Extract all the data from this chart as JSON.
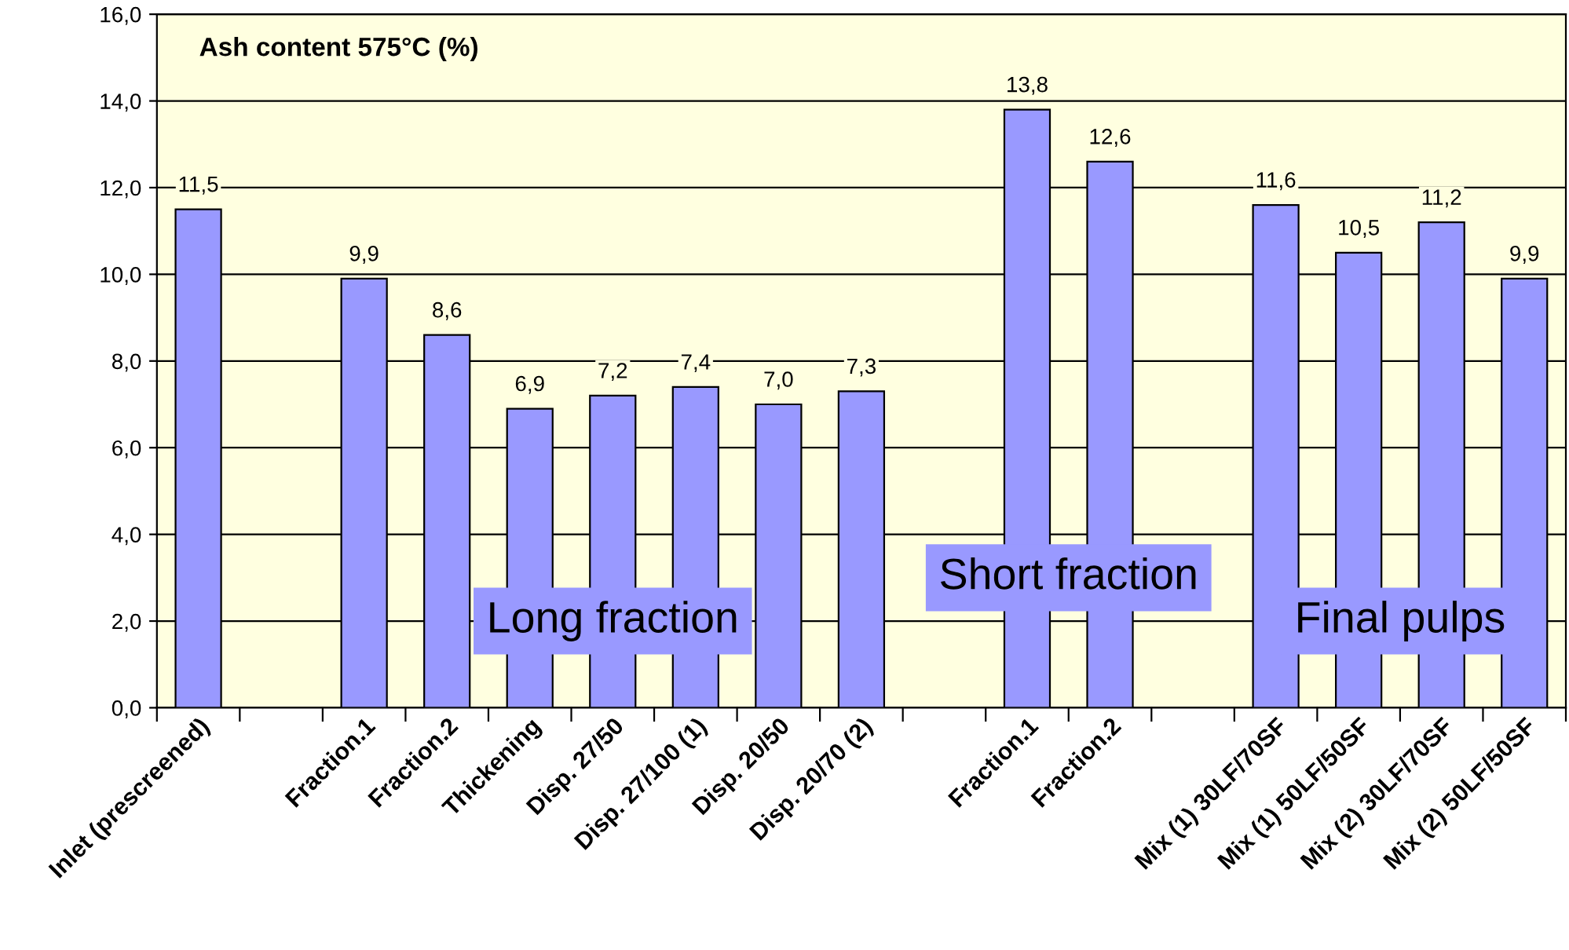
{
  "chart_data": {
    "type": "bar",
    "title": "Ash content 575°C (%)",
    "categories": [
      "Inlet (prescreened)",
      null,
      "Fraction.1",
      "Fraction.2",
      "Thickening",
      "Disp. 27/50",
      "Disp. 27/100 (1)",
      "Disp. 20/50",
      "Disp. 20/70 (2)",
      null,
      "Fraction.1",
      "Fraction.2",
      null,
      "Mix (1) 30LF/70SF",
      "Mix (1) 50LF/50SF",
      "Mix (2) 30LF/70SF",
      "Mix (2) 50LF/50SF"
    ],
    "values": [
      11.5,
      null,
      9.9,
      8.6,
      6.9,
      7.2,
      7.4,
      7.0,
      7.3,
      null,
      13.8,
      12.6,
      null,
      11.6,
      10.5,
      11.2,
      9.9
    ],
    "value_labels": [
      "11,5",
      null,
      "9,9",
      "8,6",
      "6,9",
      "7,2",
      "7,4",
      "7,0",
      "7,3",
      null,
      "13,8",
      "12,6",
      null,
      "11,6",
      "10,5",
      "11,2",
      "9,9"
    ],
    "color": "#9999ff",
    "ylim": [
      0,
      16
    ],
    "yticks": [
      {
        "value": 0,
        "label": "0,0"
      },
      {
        "value": 2,
        "label": "2,0"
      },
      {
        "value": 4,
        "label": "4,0"
      },
      {
        "value": 6,
        "label": "6,0"
      },
      {
        "value": 8,
        "label": "8,0"
      },
      {
        "value": 10,
        "label": "10,0"
      },
      {
        "value": 12,
        "label": "12,0"
      },
      {
        "value": 14,
        "label": "14,0"
      },
      {
        "value": 16,
        "label": "16,0"
      }
    ],
    "grid": "y",
    "annotations": [
      "Long fraction",
      "Short fraction",
      "Final pulps"
    ]
  }
}
